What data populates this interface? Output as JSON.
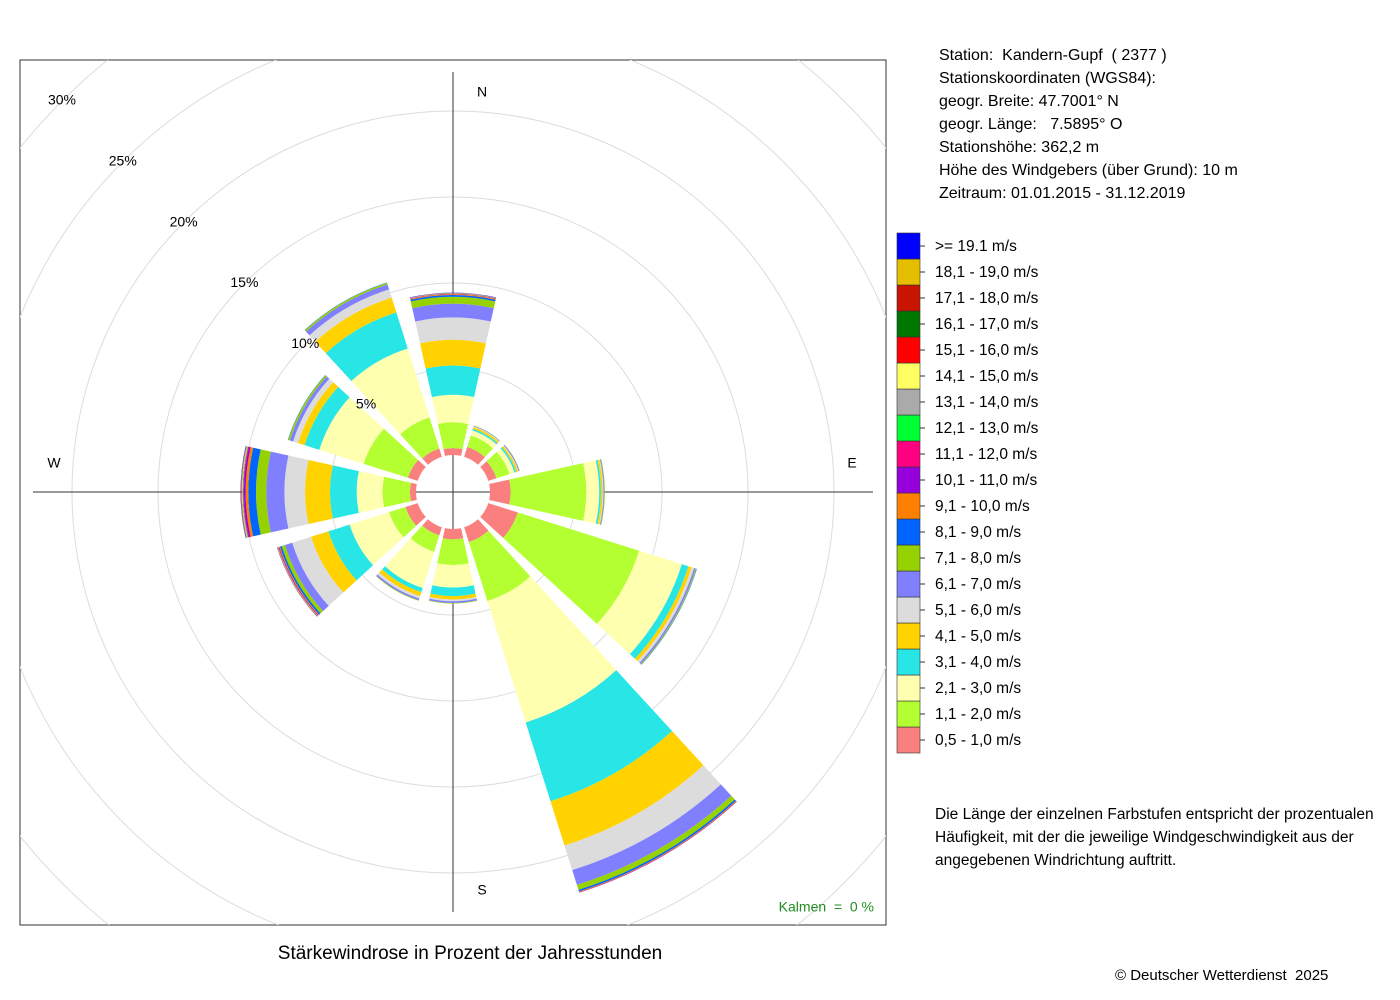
{
  "chart_data": {
    "type": "windrose",
    "title": "Stärkewindrose in Prozent der Jahresstunden",
    "categories": [
      "N",
      null,
      null,
      "E",
      null,
      null,
      "S",
      null,
      null,
      "W",
      null,
      null
    ],
    "rlim": [
      0,
      30
    ],
    "rticks": [
      {
        "value": 5,
        "label": "5%"
      },
      {
        "value": 10,
        "label": "10%"
      },
      {
        "value": 15,
        "label": "15%"
      },
      {
        "value": 20,
        "label": "20%"
      },
      {
        "value": 25,
        "label": "25%"
      },
      {
        "value": 30,
        "label": "30%"
      }
    ],
    "grid": true,
    "series": [
      {
        "name": "0,5 - 1,0 m/s",
        "color": "#fa8080",
        "values": [
          0.4,
          0.6,
          0.5,
          1.2,
          1.8,
          0.9,
          0.6,
          0.5,
          0.75,
          0.35,
          0.6,
          0.5
        ]
      },
      {
        "name": "1,1 - 2,0 m/s",
        "color": "#b4ff32",
        "values": [
          1.5,
          0.7,
          0.8,
          4.4,
          7.4,
          3.6,
          1.5,
          1.0,
          1.0,
          1.6,
          2.7,
          1.9
        ]
      },
      {
        "name": "2,1 - 3,0 m/s",
        "color": "#ffffb0",
        "values": [
          1.6,
          0.3,
          0.3,
          0.75,
          2.6,
          7.4,
          1.3,
          2.2,
          2.4,
          1.5,
          2.7,
          4.2
        ]
      },
      {
        "name": "3,1 - 4,0 m/s",
        "color": "#28e6e6",
        "values": [
          1.7,
          0.1,
          0.1,
          0.1,
          0.4,
          4.8,
          0.5,
          0.25,
          1.3,
          1.55,
          0.9,
          2.2
        ]
      },
      {
        "name": "4,1 - 5,0 m/s",
        "color": "#ffd200",
        "values": [
          1.5,
          0.1,
          0.1,
          0.1,
          0.2,
          2.7,
          0.2,
          0.25,
          1.05,
          1.45,
          0.4,
          0.9
        ]
      },
      {
        "name": "5,1 - 6,0 m/s",
        "color": "#dcdcdc",
        "values": [
          1.3,
          0.05,
          0.05,
          0.05,
          0.15,
          1.5,
          0.1,
          0.15,
          1.15,
          1.2,
          0.3,
          0.5
        ]
      },
      {
        "name": "6,1 - 7,0 m/s",
        "color": "#8080ff",
        "values": [
          0.8,
          0.03,
          0.05,
          0.05,
          0.1,
          0.9,
          0.1,
          0.1,
          0.45,
          1.05,
          0.2,
          0.3
        ]
      },
      {
        "name": "7,1 - 8,0 m/s",
        "color": "#96d200",
        "values": [
          0.4,
          0.02,
          0.02,
          0.03,
          0.05,
          0.3,
          0.03,
          0.03,
          0.2,
          0.6,
          0.1,
          0.1
        ]
      },
      {
        "name": "8,1 - 9,0 m/s",
        "color": "#0064ff",
        "values": [
          0.1,
          0,
          0,
          0,
          0.02,
          0.1,
          0,
          0,
          0.1,
          0.45,
          0.02,
          0.02
        ]
      },
      {
        "name": "9,1 - 10,0 m/s",
        "color": "#ff8000",
        "values": [
          0.05,
          0,
          0,
          0,
          0,
          0.05,
          0,
          0,
          0.05,
          0.15,
          0,
          0
        ]
      },
      {
        "name": "10,1 - 11,0 m/s",
        "color": "#9600dc",
        "values": [
          0.02,
          0,
          0,
          0,
          0,
          0.02,
          0,
          0,
          0.03,
          0.1,
          0,
          0
        ]
      },
      {
        "name": "11,1 - 12,0 m/s",
        "color": "#ff0080",
        "values": [
          0.01,
          0,
          0,
          0,
          0,
          0,
          0,
          0,
          0.03,
          0.05,
          0,
          0
        ]
      },
      {
        "name": "12,1 - 13,0 m/s",
        "color": "#00ff32",
        "values": [
          0.01,
          0,
          0,
          0,
          0,
          0,
          0,
          0,
          0.02,
          0.03,
          0,
          0
        ]
      },
      {
        "name": "13,1 - 14,0 m/s",
        "color": "#aaaaaa",
        "values": [
          0.01,
          0,
          0,
          0,
          0,
          0,
          0,
          0,
          0.01,
          0.03,
          0,
          0
        ]
      },
      {
        "name": "14,1 - 15,0 m/s",
        "color": "#ffff64",
        "values": [
          0.01,
          0,
          0,
          0,
          0,
          0,
          0,
          0,
          0.01,
          0.02,
          0,
          0
        ]
      },
      {
        "name": "15,1 - 16,0 m/s",
        "color": "#ff0000",
        "values": [
          0.01,
          0,
          0,
          0,
          0,
          0,
          0,
          0,
          0.02,
          0.02,
          0,
          0
        ]
      },
      {
        "name": "16,1 - 17,0 m/s",
        "color": "#007800",
        "values": [
          0,
          0,
          0,
          0,
          0,
          0,
          0,
          0,
          0,
          0.01,
          0,
          0
        ]
      },
      {
        "name": "17,1 - 18,0 m/s",
        "color": "#c81400",
        "values": [
          0,
          0,
          0,
          0,
          0,
          0,
          0,
          0,
          0,
          0.01,
          0,
          0
        ]
      },
      {
        "name": "18,1 - 19,0 m/s",
        "color": "#e6be00",
        "values": [
          0,
          0,
          0,
          0,
          0,
          0,
          0,
          0,
          0,
          0.01,
          0,
          0
        ]
      },
      {
        "name": ">= 19.1 m/s",
        "color": "#0000ff",
        "values": [
          0.02,
          0,
          0,
          0,
          0,
          0,
          0,
          0,
          0.01,
          0.02,
          0,
          0
        ]
      }
    ],
    "calm_label": "Kalmen  =  0 %",
    "info": [
      "Station:  Kandern-Gupf  ( 2377 )",
      "Stationskoordinaten (WGS84):",
      "geogr. Breite: 47.7001° N",
      "geogr. Länge:   7.5895° O",
      "Stationshöhe: 362,2 m",
      "Höhe des Windgebers (über Grund): 10 m",
      "Zeitraum: 01.01.2015 - 31.12.2019"
    ],
    "note": [
      "Die Länge der einzelnen Farbstufen entspricht der prozentualen",
      "Häufigkeit, mit der die jeweilige Windgeschwindigkeit aus der",
      "angegebenen Windrichtung auftritt."
    ],
    "copyright": "© Deutscher Wetterdienst  2025"
  }
}
